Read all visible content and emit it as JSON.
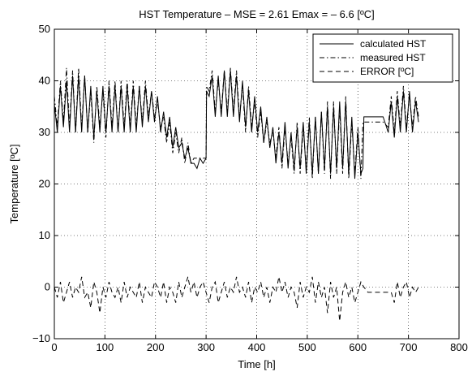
{
  "chart_data": {
    "type": "line",
    "title": "HST Temperature   –  MSE = 2.61     Emax = – 6.6 [ºC]",
    "xlabel": "Time [h]",
    "ylabel": "Temperature [ºC]",
    "xlim": [
      0,
      800
    ],
    "ylim": [
      -10,
      50
    ],
    "xticks": [
      0,
      100,
      200,
      300,
      400,
      500,
      600,
      700,
      800
    ],
    "yticks": [
      -10,
      0,
      10,
      20,
      30,
      40,
      50
    ],
    "xtick_labels": [
      "0",
      "100",
      "200",
      "300",
      "400",
      "500",
      "600",
      "700",
      "800"
    ],
    "ytick_labels": [
      "−10",
      "0",
      "10",
      "20",
      "30",
      "40",
      "50"
    ],
    "grid": true,
    "legend_position": "top-right",
    "series": [
      {
        "name": "calculated HST",
        "style": "solid",
        "x": [
          0,
          6,
          12,
          18,
          24,
          30,
          36,
          42,
          48,
          54,
          60,
          66,
          72,
          78,
          84,
          90,
          96,
          102,
          108,
          114,
          120,
          126,
          132,
          138,
          144,
          150,
          156,
          162,
          168,
          174,
          180,
          186,
          192,
          198,
          204,
          210,
          216,
          222,
          228,
          234,
          240,
          246,
          252,
          258,
          264,
          270,
          276,
          282,
          288,
          294,
          300,
          301,
          306,
          312,
          318,
          324,
          330,
          336,
          342,
          348,
          354,
          360,
          366,
          372,
          378,
          384,
          390,
          396,
          402,
          408,
          414,
          420,
          426,
          432,
          438,
          444,
          450,
          456,
          462,
          468,
          474,
          480,
          486,
          492,
          498,
          504,
          510,
          516,
          522,
          528,
          534,
          540,
          546,
          552,
          558,
          564,
          570,
          576,
          582,
          588,
          594,
          600,
          606,
          610,
          612,
          620,
          630,
          640,
          650,
          660,
          666,
          672,
          678,
          684,
          690,
          696,
          702,
          708,
          714,
          720
        ],
        "y": [
          35.5,
          30,
          39,
          31,
          40,
          30,
          41,
          30,
          41,
          30,
          41,
          30,
          39,
          29,
          38,
          30,
          39,
          30,
          39,
          30,
          39,
          30,
          39,
          30,
          39,
          30,
          39,
          30,
          39,
          31,
          39,
          32,
          38,
          32,
          37,
          30,
          34,
          29,
          33,
          27,
          31,
          27,
          28,
          25,
          27,
          24,
          24,
          23,
          25,
          24,
          25,
          38,
          37,
          41,
          33,
          41,
          33,
          42,
          33,
          42,
          33,
          41,
          32,
          40,
          31,
          38,
          30,
          37,
          30,
          35,
          28,
          33,
          27,
          31,
          24,
          30,
          24,
          32,
          23,
          30,
          23,
          31,
          23,
          32,
          22,
          32,
          22,
          33,
          22,
          34,
          23,
          35,
          22,
          35,
          23,
          36,
          23,
          36,
          22,
          33,
          21,
          30,
          22,
          23,
          33,
          33,
          33,
          33,
          33,
          30,
          36,
          29,
          37,
          30,
          38,
          30,
          38,
          30,
          36,
          32
        ]
      },
      {
        "name": "measured HST",
        "style": "dashdot",
        "x": [
          0,
          6,
          12,
          18,
          24,
          30,
          36,
          42,
          48,
          54,
          60,
          66,
          72,
          78,
          84,
          90,
          96,
          102,
          108,
          114,
          120,
          126,
          132,
          138,
          144,
          150,
          156,
          162,
          168,
          174,
          180,
          186,
          192,
          198,
          204,
          210,
          216,
          222,
          228,
          234,
          240,
          246,
          252,
          258,
          264,
          270,
          276,
          282,
          288,
          294,
          300,
          301,
          306,
          312,
          318,
          324,
          330,
          336,
          342,
          348,
          354,
          360,
          366,
          372,
          378,
          384,
          390,
          396,
          402,
          408,
          414,
          420,
          426,
          432,
          438,
          444,
          450,
          456,
          462,
          468,
          474,
          480,
          486,
          492,
          498,
          504,
          510,
          516,
          522,
          528,
          534,
          540,
          546,
          552,
          558,
          564,
          570,
          576,
          582,
          588,
          594,
          600,
          606,
          610,
          612,
          620,
          630,
          640,
          650,
          660,
          666,
          672,
          678,
          684,
          690,
          696,
          702,
          708,
          714,
          720
        ],
        "y": [
          37,
          31,
          40,
          32,
          42.5,
          31,
          42,
          30,
          42.5,
          31,
          41,
          30,
          38,
          28,
          39,
          31,
          38,
          29,
          40,
          31,
          40,
          30,
          40,
          31,
          40,
          31,
          40,
          31,
          39,
          32,
          40,
          33,
          38,
          33,
          36,
          31,
          33,
          28,
          32,
          26,
          30,
          26,
          29,
          24,
          28,
          24,
          25,
          25,
          25,
          25,
          25,
          39,
          38,
          42,
          34,
          40,
          34,
          42,
          34,
          42.5,
          34,
          42,
          33,
          39,
          30,
          39,
          31,
          36,
          29,
          34,
          28,
          32,
          28,
          30,
          25,
          31,
          23,
          31,
          24,
          29,
          22,
          32,
          22,
          31,
          23,
          33,
          21,
          33,
          22,
          34,
          22,
          36,
          21,
          36,
          22,
          35,
          22,
          37,
          21,
          32,
          22,
          31,
          21,
          32,
          32,
          32,
          32,
          32,
          32,
          31,
          37,
          30,
          38,
          31,
          39,
          31,
          37,
          31,
          37,
          33
        ]
      },
      {
        "name": "ERROR [ºC]",
        "style": "dashed",
        "x": [
          0,
          6,
          12,
          18,
          24,
          30,
          36,
          42,
          48,
          54,
          60,
          66,
          72,
          78,
          84,
          90,
          96,
          102,
          108,
          114,
          120,
          126,
          132,
          138,
          144,
          150,
          156,
          162,
          168,
          174,
          180,
          186,
          192,
          198,
          204,
          210,
          216,
          222,
          228,
          234,
          240,
          246,
          252,
          258,
          264,
          270,
          276,
          282,
          288,
          294,
          300,
          306,
          312,
          318,
          324,
          330,
          336,
          342,
          348,
          354,
          360,
          366,
          372,
          378,
          384,
          390,
          396,
          402,
          408,
          414,
          420,
          426,
          432,
          438,
          444,
          450,
          456,
          462,
          468,
          474,
          480,
          486,
          492,
          498,
          504,
          510,
          516,
          522,
          528,
          534,
          540,
          546,
          552,
          558,
          564,
          570,
          576,
          582,
          588,
          594,
          600,
          606,
          612,
          620,
          630,
          640,
          650,
          660,
          666,
          672,
          678,
          684,
          690,
          696,
          702,
          708,
          714,
          720
        ],
        "y": [
          0,
          -2,
          1,
          -3,
          -1,
          1,
          -2,
          0,
          -1,
          2,
          -2,
          -1,
          -4,
          1,
          -1,
          -5,
          0,
          -2,
          1,
          -1,
          -2,
          0,
          -3,
          1,
          -2,
          0,
          -1,
          -2,
          1,
          -3,
          0,
          -1,
          -2,
          1,
          0,
          -2,
          1,
          -3,
          0,
          -1,
          -3,
          1,
          -2,
          0,
          2,
          -1,
          1,
          -2,
          0,
          1,
          -1,
          -3,
          0,
          1,
          -3,
          -1,
          1,
          -2,
          0,
          -1,
          2,
          -1,
          0,
          -2,
          1,
          -3,
          0,
          -1,
          1,
          -2,
          0,
          -3,
          0,
          -1,
          2,
          -1,
          1,
          -2,
          0,
          -1,
          -4,
          1,
          -2,
          0,
          -1,
          2,
          -3,
          1,
          -2,
          0,
          -5,
          1,
          -2,
          0,
          -6.6,
          -1,
          1,
          -2,
          0,
          -3,
          -1,
          1,
          0,
          -1,
          -1,
          -1,
          -1,
          -1,
          -1,
          -3,
          1,
          -2,
          0,
          1,
          -2,
          0,
          -1,
          0
        ]
      }
    ]
  }
}
